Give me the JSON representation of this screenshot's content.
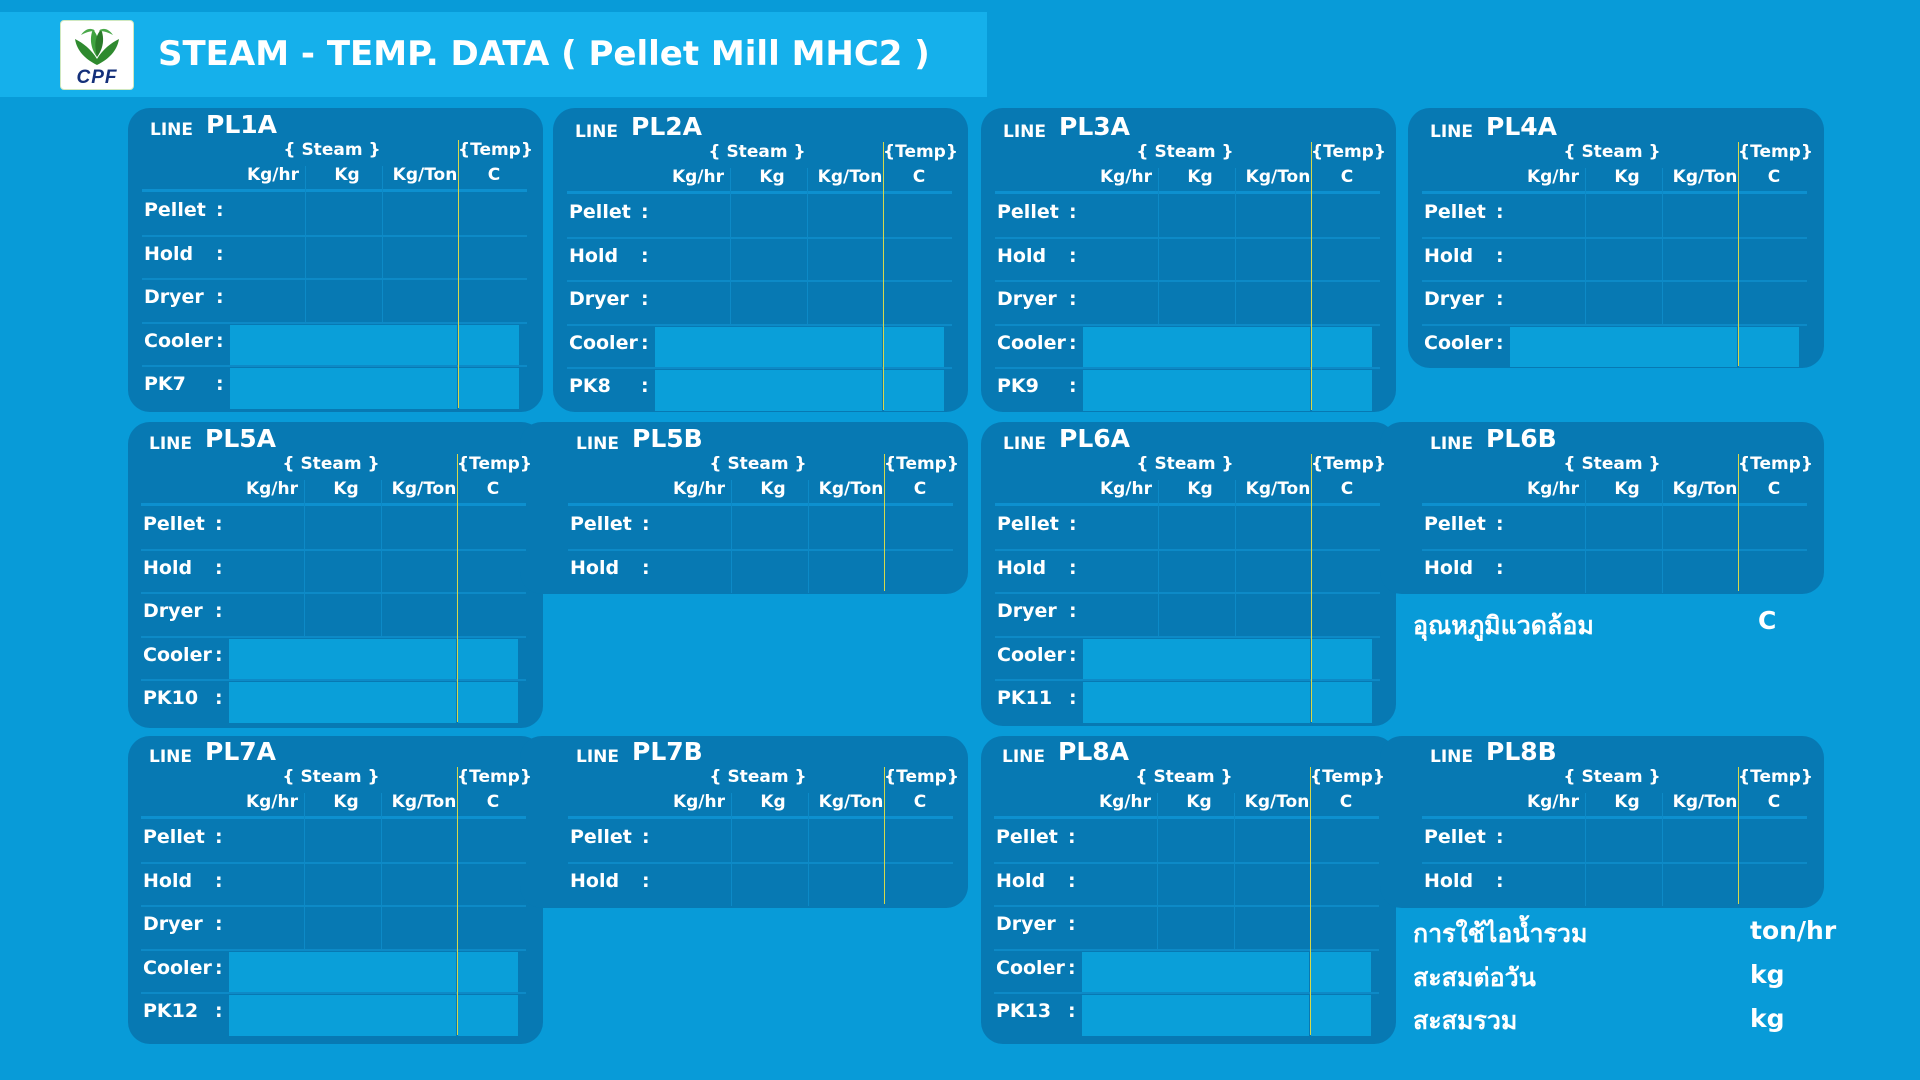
{
  "header": {
    "title": "STEAM - TEMP. DATA ( Pellet Mill MHC2 )",
    "logo_text": "CPF"
  },
  "table_headers": {
    "line_label": "LINE",
    "steam": "{ Steam }",
    "temp": "{Temp}",
    "kg_hr": "Kg/hr",
    "kg": "Kg",
    "kg_ton": "Kg/Ton",
    "c": "C"
  },
  "lines": {
    "PL1A": {
      "name": "PL1A",
      "rows": [
        "Pellet",
        "Hold",
        "Dryer",
        "Cooler",
        "PK7"
      ]
    },
    "PL2A": {
      "name": "PL2A",
      "rows": [
        "Pellet",
        "Hold",
        "Dryer",
        "Cooler",
        "PK8"
      ]
    },
    "PL3A": {
      "name": "PL3A",
      "rows": [
        "Pellet",
        "Hold",
        "Dryer",
        "Cooler",
        "PK9"
      ]
    },
    "PL4A": {
      "name": "PL4A",
      "rows": [
        "Pellet",
        "Hold",
        "Dryer",
        "Cooler"
      ]
    },
    "PL5A": {
      "name": "PL5A",
      "rows": [
        "Pellet",
        "Hold",
        "Dryer",
        "Cooler",
        "PK10"
      ]
    },
    "PL5B": {
      "name": "PL5B",
      "rows": [
        "Pellet",
        "Hold"
      ]
    },
    "PL6A": {
      "name": "PL6A",
      "rows": [
        "Pellet",
        "Hold",
        "Dryer",
        "Cooler",
        "PK11"
      ]
    },
    "PL6B": {
      "name": "PL6B",
      "rows": [
        "Pellet",
        "Hold"
      ]
    },
    "PL7A": {
      "name": "PL7A",
      "rows": [
        "Pellet",
        "Hold",
        "Dryer",
        "Cooler",
        "PK12"
      ]
    },
    "PL7B": {
      "name": "PL7B",
      "rows": [
        "Pellet",
        "Hold"
      ]
    },
    "PL8A": {
      "name": "PL8A",
      "rows": [
        "Pellet",
        "Hold",
        "Dryer",
        "Cooler",
        "PK13"
      ]
    },
    "PL8B": {
      "name": "PL8B",
      "rows": [
        "Pellet",
        "Hold"
      ]
    }
  },
  "ambient": {
    "label": "อุณหภูมิแวดล้อม",
    "unit": "C"
  },
  "totals": {
    "steam_usage": {
      "label": "การใช้ไอน้ำรวม",
      "unit": "ton/hr"
    },
    "daily": {
      "label": "สะสมต่อวัน",
      "unit": "kg"
    },
    "cumulative": {
      "label": "สะสมรวม",
      "unit": "kg"
    }
  },
  "colors": {
    "background": "#089bd8",
    "panel": "#0779b3",
    "header_bar": "#15b0eb",
    "cell_highlight": "#0a9fd9",
    "temp_divider": "#d6d84a"
  }
}
